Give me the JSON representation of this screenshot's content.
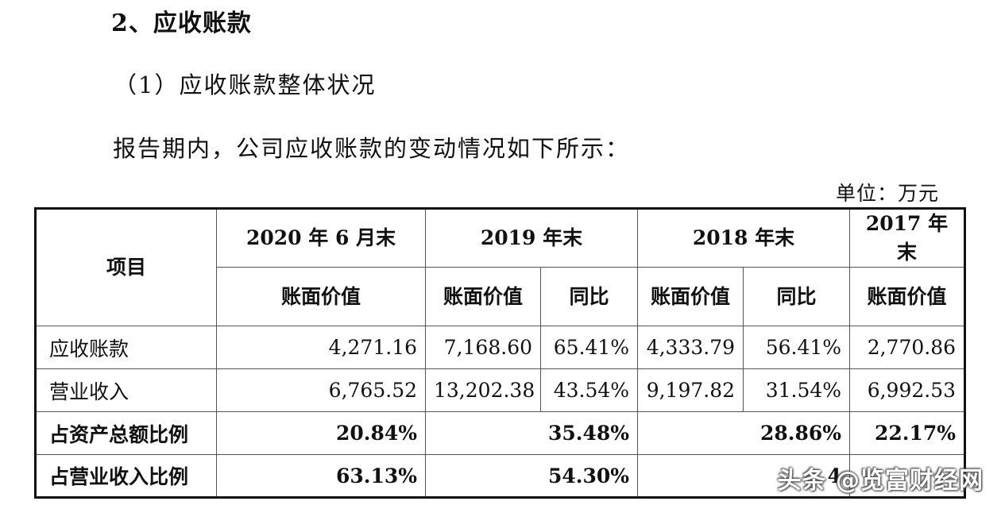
{
  "heading": "2、应收账款",
  "subheading": "（1）应收账款整体状况",
  "paragraph": "报告期内，公司应收账款的变动情况如下所示：",
  "unit": "单位：万元",
  "table": {
    "header_item": "项目",
    "periods": [
      "2020 年 6 月末",
      "2019 年末",
      "2018 年末",
      "2017 年末"
    ],
    "sub_headers": [
      "账面价值",
      "账面价值",
      "同比",
      "账面价值",
      "同比",
      "账面价值"
    ],
    "rows": [
      {
        "label": "应收账款",
        "values": [
          "4,271.16",
          "7,168.60",
          "65.41%",
          "4,333.79",
          "56.41%",
          "2,770.86"
        ]
      },
      {
        "label": "营业收入",
        "values": [
          "6,765.52",
          "13,202.38",
          "43.54%",
          "9,197.82",
          "31.54%",
          "6,992.53"
        ]
      }
    ],
    "ratio_rows": [
      {
        "label": "占资产总额比例",
        "values": [
          "20.84%",
          "35.48%",
          "28.86%",
          "22.17%"
        ]
      },
      {
        "label": "占营业收入比例",
        "values": [
          "63.13%",
          "54.30%",
          "4",
          ""
        ]
      }
    ]
  },
  "watermark": "头条 @览富财经网"
}
